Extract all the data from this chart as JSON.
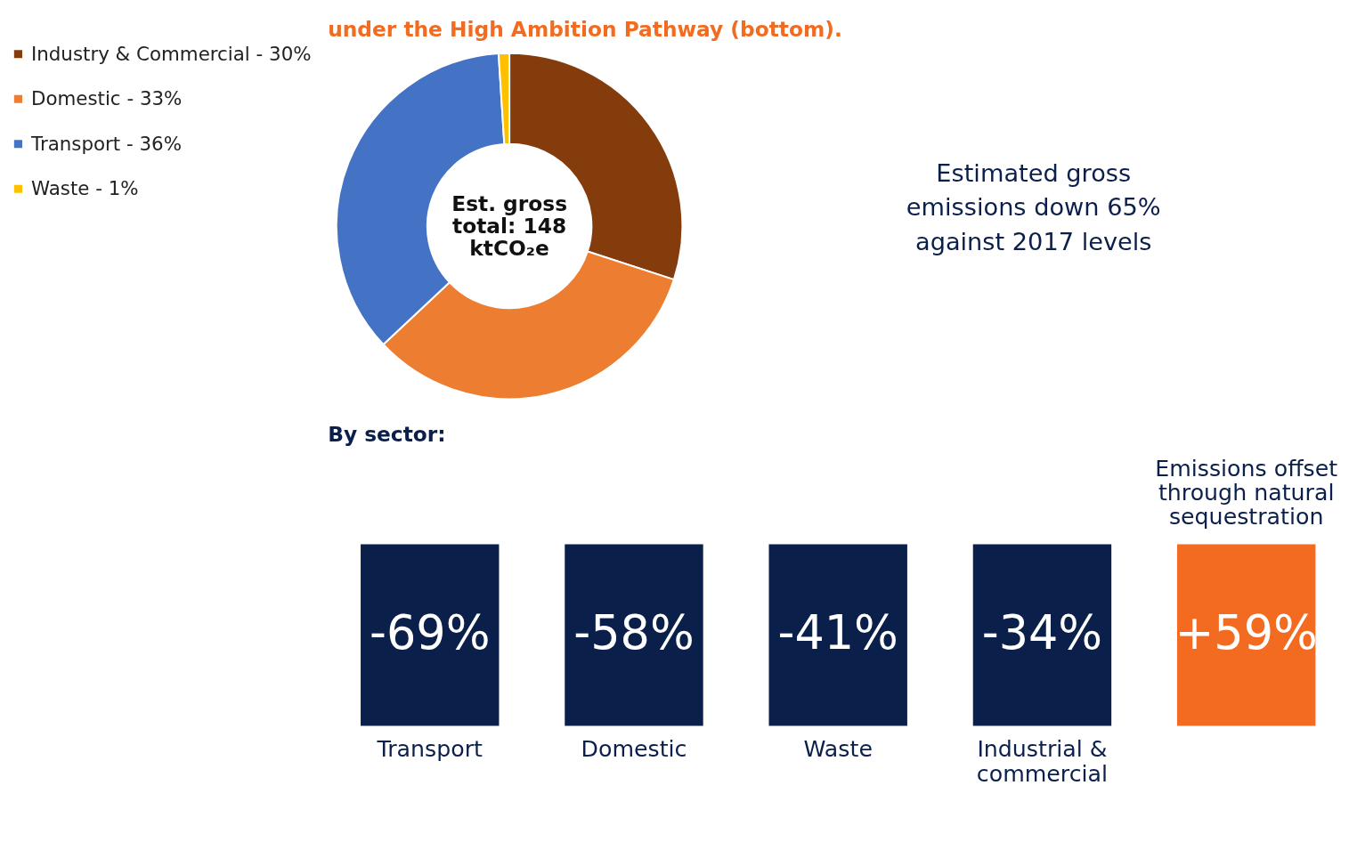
{
  "chart_data": [
    {
      "type": "donut",
      "title": "under the High Ambition Pathway (bottom).",
      "categories": [
        "Industry & Commercial - 30%",
        "Domestic - 33%",
        "Transport - 36%",
        "Waste - 1%"
      ],
      "values": [
        30,
        33,
        36,
        1
      ],
      "colors": [
        "#843c0c",
        "#ed7d31",
        "#4472c4",
        "#ffc000"
      ],
      "legend": "left",
      "annotations": [
        "Est. gross total: 148 ktCO₂e",
        "Estimated gross emissions down 65% against 2017 levels"
      ]
    },
    {
      "type": "other",
      "title": "By sector:",
      "categories": [
        "Transport",
        "Domestic",
        "Waste",
        "Industrial & commercial",
        "Emissions offset through natural sequestration"
      ],
      "values": [
        -69,
        -58,
        -41,
        -34,
        59
      ],
      "value_labels": [
        "-69%",
        "-58%",
        "-41%",
        "-34%",
        "+59%"
      ],
      "colors": [
        "#0b1f4b",
        "#0b1f4b",
        "#0b1f4b",
        "#0b1f4b",
        "#f26b21"
      ]
    }
  ]
}
